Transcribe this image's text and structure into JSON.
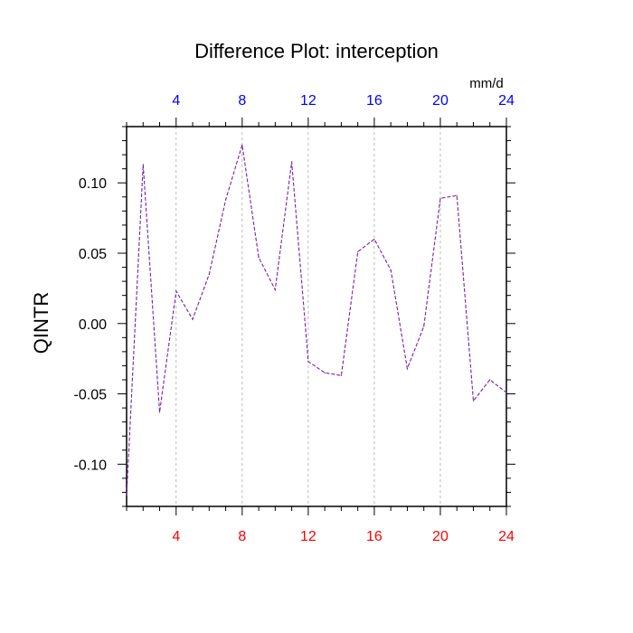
{
  "chart_data": {
    "type": "line",
    "title": "Difference Plot: interception",
    "ylabel": "QINTR",
    "units": "mm/d",
    "xlim": [
      1,
      24
    ],
    "ylim": [
      -0.13,
      0.14
    ],
    "x_ticks_major": [
      4,
      8,
      12,
      16,
      20,
      24
    ],
    "x_tick_labels": [
      "4",
      "8",
      "12",
      "16",
      "20",
      "24"
    ],
    "y_ticks_major": [
      -0.1,
      -0.05,
      0.0,
      0.05,
      0.1
    ],
    "y_tick_labels": [
      "-0.10",
      "-0.05",
      "0.00",
      "0.05",
      "0.10"
    ],
    "grid": "vertical dashed at major x ticks",
    "colors": {
      "top_axis_labels": "#0000ff",
      "bottom_axis_labels": "#ff0000",
      "series_line": "#7a1fa8",
      "grid": "#aaaaaa"
    },
    "series": [
      {
        "x": [
          1,
          2,
          3,
          4,
          5,
          6,
          7,
          8,
          9,
          10,
          11,
          12,
          13,
          14,
          15,
          16,
          17,
          18,
          19,
          20,
          21,
          22,
          23,
          24
        ],
        "values": [
          -0.122,
          0.113,
          -0.063,
          0.023,
          0.003,
          0.035,
          0.088,
          0.127,
          0.047,
          0.024,
          0.115,
          -0.027,
          -0.035,
          -0.037,
          0.051,
          0.06,
          0.038,
          -0.032,
          -0.002,
          0.089,
          0.091,
          -0.055,
          -0.04,
          -0.049
        ]
      }
    ]
  }
}
